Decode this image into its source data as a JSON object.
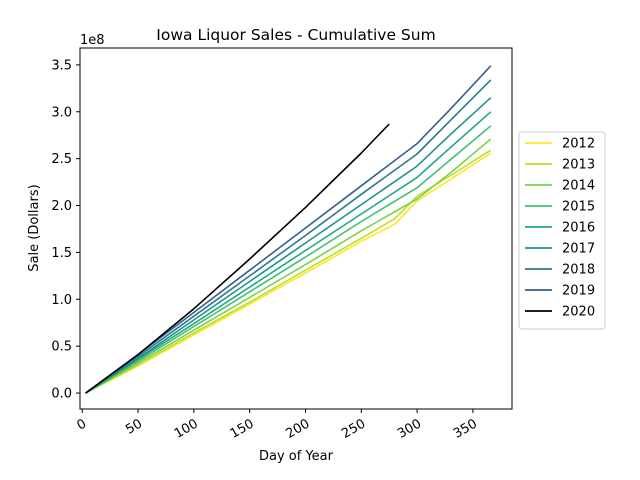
{
  "chart_data": {
    "type": "line",
    "title": "Iowa Liquor Sales - Cumulative Sum",
    "xlabel": "Day of Year",
    "ylabel": "Sale (Dollars)",
    "y_multiplier_label": "1e8",
    "xlim": [
      -2,
      385
    ],
    "ylim": [
      -0.17,
      3.68
    ],
    "x_ticks": [
      0,
      50,
      100,
      150,
      200,
      250,
      300,
      350
    ],
    "y_ticks": [
      0.0,
      0.5,
      1.0,
      1.5,
      2.0,
      2.5,
      3.0,
      3.5
    ],
    "y_tick_labels": [
      "0.0",
      "0.5",
      "1.0",
      "1.5",
      "2.0",
      "2.5",
      "3.0",
      "3.5"
    ],
    "grid": false,
    "legend_position": "center-right, outside plot",
    "series": [
      {
        "name": "2012",
        "color": "#fde725",
        "x": [
          3,
          50,
          100,
          150,
          200,
          250,
          280,
          300,
          330,
          366
        ],
        "y": [
          0.0,
          0.29,
          0.62,
          0.95,
          1.28,
          1.62,
          1.8,
          2.05,
          2.28,
          2.56
        ]
      },
      {
        "name": "2013",
        "color": "#bddf26",
        "x": [
          3,
          50,
          100,
          150,
          200,
          250,
          280,
          300,
          330,
          366
        ],
        "y": [
          0.0,
          0.3,
          0.64,
          0.97,
          1.31,
          1.65,
          1.86,
          2.1,
          2.32,
          2.59
        ]
      },
      {
        "name": "2014",
        "color": "#7ad151",
        "x": [
          3,
          50,
          100,
          150,
          200,
          250,
          300,
          330,
          366
        ],
        "y": [
          0.0,
          0.32,
          0.67,
          1.02,
          1.37,
          1.73,
          2.07,
          2.35,
          2.71
        ]
      },
      {
        "name": "2015",
        "color": "#44bf70",
        "x": [
          3,
          50,
          100,
          150,
          200,
          250,
          300,
          330,
          366
        ],
        "y": [
          0.0,
          0.34,
          0.71,
          1.08,
          1.45,
          1.83,
          2.19,
          2.49,
          2.85
        ]
      },
      {
        "name": "2016",
        "color": "#22a884",
        "x": [
          3,
          50,
          100,
          150,
          200,
          250,
          300,
          330,
          366
        ],
        "y": [
          0.0,
          0.36,
          0.74,
          1.13,
          1.52,
          1.91,
          2.3,
          2.62,
          3.0
        ]
      },
      {
        "name": "2017",
        "color": "#21918c",
        "x": [
          3,
          50,
          100,
          150,
          200,
          250,
          300,
          330,
          366
        ],
        "y": [
          0.0,
          0.37,
          0.78,
          1.19,
          1.6,
          2.01,
          2.42,
          2.76,
          3.15
        ]
      },
      {
        "name": "2018",
        "color": "#2a788e",
        "x": [
          3,
          50,
          100,
          150,
          200,
          250,
          300,
          330,
          366
        ],
        "y": [
          0.0,
          0.39,
          0.82,
          1.25,
          1.68,
          2.12,
          2.55,
          2.91,
          3.34
        ]
      },
      {
        "name": "2019",
        "color": "#355f8d",
        "x": [
          3,
          50,
          100,
          150,
          200,
          250,
          300,
          330,
          366
        ],
        "y": [
          0.0,
          0.41,
          0.86,
          1.31,
          1.76,
          2.21,
          2.66,
          3.03,
          3.49
        ]
      },
      {
        "name": "2020",
        "color": "#000000",
        "x": [
          3,
          50,
          100,
          150,
          200,
          250,
          275
        ],
        "y": [
          0.0,
          0.41,
          0.9,
          1.43,
          1.98,
          2.56,
          2.87
        ]
      }
    ]
  }
}
